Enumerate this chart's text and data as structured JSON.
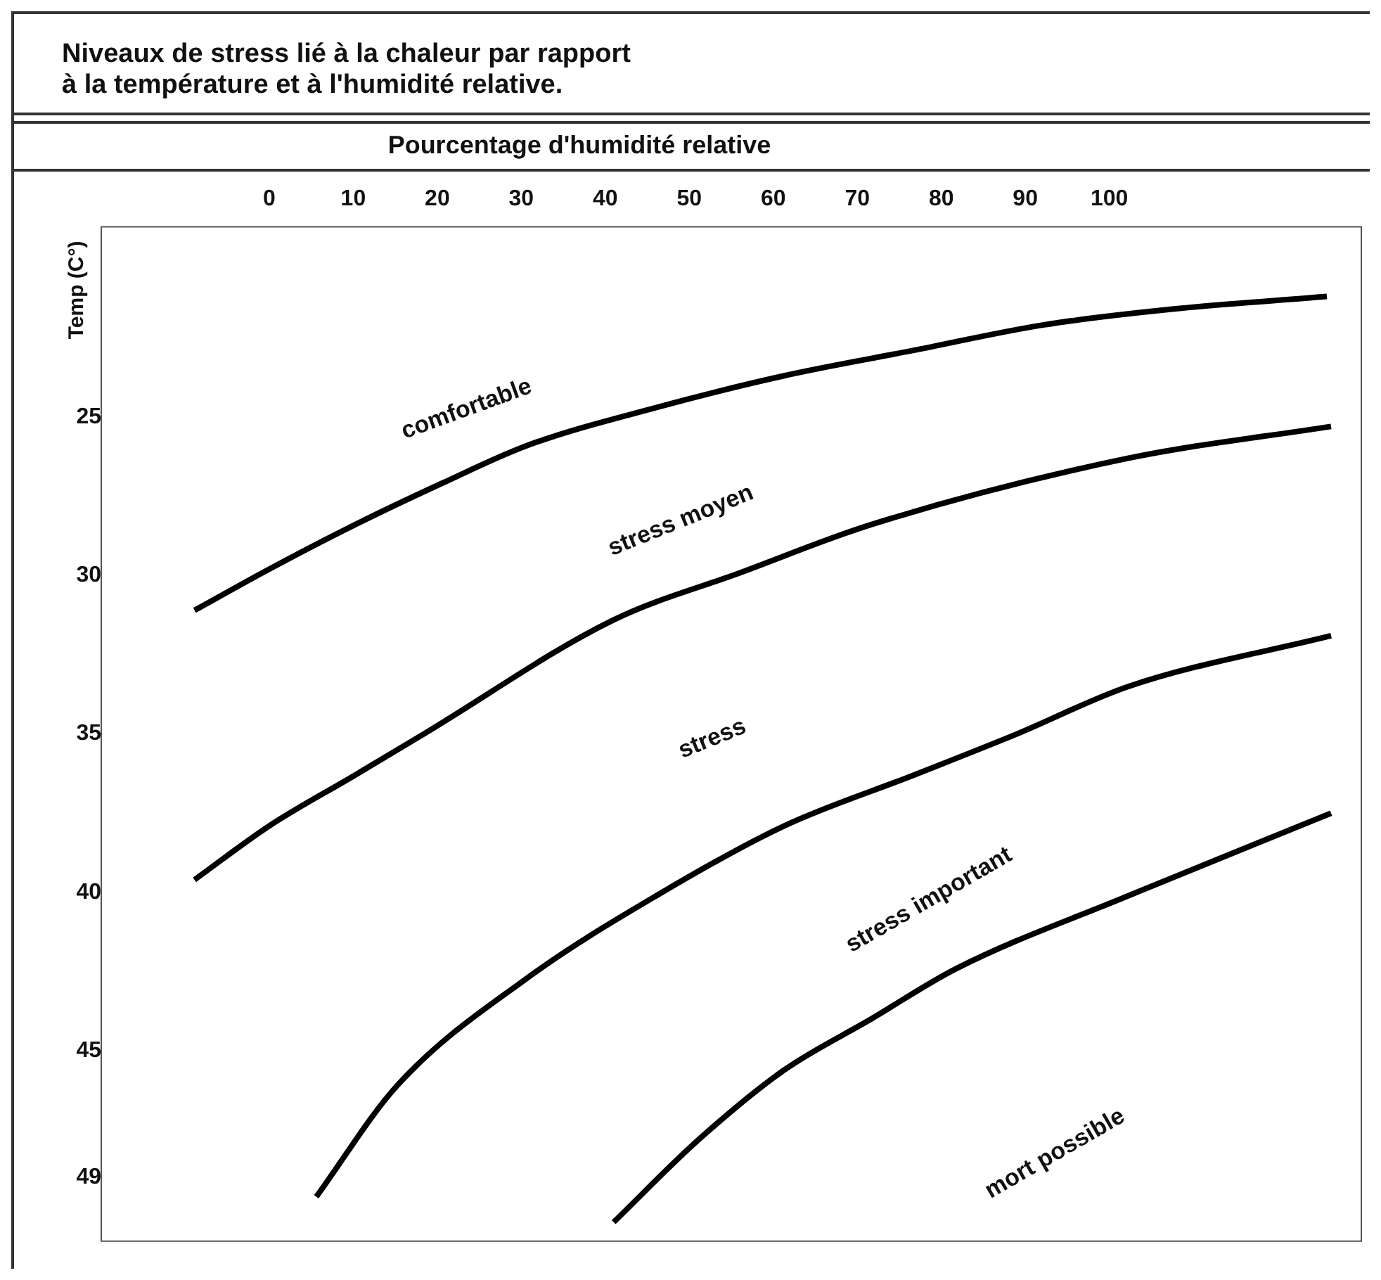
{
  "chart_data": {
    "type": "line",
    "title": "Niveaux de stress lié à la chaleur par rapport\nà la température et à l'humidité relative.",
    "xlabel": "Pourcentage d'humidité relative",
    "ylabel": "Temp (C°)",
    "xlim": [
      -20,
      130
    ],
    "xticks": [
      0,
      10,
      20,
      30,
      40,
      50,
      60,
      70,
      80,
      90,
      100
    ],
    "ylim": [
      51,
      19
    ],
    "yticks": [
      25,
      30,
      35,
      40,
      45,
      49
    ],
    "grid": false,
    "legend": false,
    "marker": "none",
    "line_style": "solid",
    "series": [
      {
        "color": "#000000",
        "x": [
          -8.9,
          0,
          10.2,
          20.5,
          30.7,
          46.1,
          61.3,
          76.7,
          92.1,
          107.5,
          125.9
        ],
        "values": [
          31.1,
          29.8,
          28.4,
          27.1,
          25.9,
          24.7,
          23.7,
          22.9,
          22.1,
          21.6,
          21.2
        ]
      },
      {
        "color": "#000000",
        "x": [
          -8.9,
          0,
          10.2,
          18.4,
          41.0,
          56.2,
          71.6,
          102.3,
          126.4
        ],
        "values": [
          39.6,
          37.9,
          36.3,
          35.0,
          31.4,
          29.9,
          28.4,
          26.3,
          25.3
        ]
      },
      {
        "color": "#000000",
        "x": [
          5.6,
          15.2,
          30.7,
          46.1,
          61.3,
          76.7,
          89.0,
          102.3,
          126.4
        ],
        "values": [
          49.6,
          46.1,
          42.7,
          40.1,
          37.9,
          36.3,
          35.0,
          33.5,
          31.9
        ]
      },
      {
        "color": "#000000",
        "x": [
          41.0,
          51.1,
          61.3,
          71.6,
          81.8,
          102.3,
          126.4
        ],
        "values": [
          50.4,
          47.8,
          45.6,
          44.0,
          42.4,
          40.1,
          37.5
        ]
      }
    ],
    "annotations": [
      "comfortable",
      "stress moyen",
      "stress",
      "stress important",
      "mort possible"
    ]
  }
}
